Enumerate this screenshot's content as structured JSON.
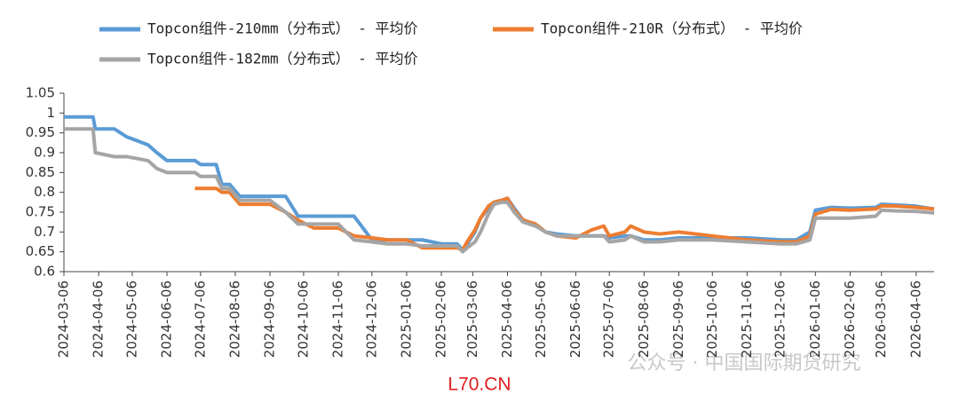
{
  "chart_data": {
    "type": "line",
    "x": [
      "2024-03-06",
      "2024-04-01",
      "2024-04-03",
      "2024-04-20",
      "2024-05-01",
      "2024-05-20",
      "2024-05-28",
      "2024-06-06",
      "2024-07-01",
      "2024-07-06",
      "2024-07-20",
      "2024-07-25",
      "2024-08-01",
      "2024-08-10",
      "2024-09-06",
      "2024-09-20",
      "2024-10-01",
      "2024-10-15",
      "2024-11-06",
      "2024-11-20",
      "2024-12-06",
      "2024-12-20",
      "2025-01-06",
      "2025-01-20",
      "2025-02-06",
      "2025-02-20",
      "2025-02-25",
      "2025-03-01",
      "2025-03-08",
      "2025-03-13",
      "2025-03-20",
      "2025-03-25",
      "2025-04-01",
      "2025-04-06",
      "2025-04-12",
      "2025-04-20",
      "2025-05-01",
      "2025-05-10",
      "2025-05-20",
      "2025-06-06",
      "2025-06-20",
      "2025-07-01",
      "2025-07-06",
      "2025-07-20",
      "2025-07-25",
      "2025-08-06",
      "2025-08-20",
      "2025-09-06",
      "2025-10-06",
      "2025-11-06",
      "2025-12-06",
      "2025-12-20",
      "2026-01-01",
      "2026-01-06",
      "2026-01-20",
      "2026-02-06",
      "2026-03-01",
      "2026-03-06",
      "2026-03-20",
      "2026-04-06",
      "2026-04-22"
    ],
    "series": [
      {
        "name": "Topcon组件-210mm（分布式） - 平均价",
        "color": "#5b9bd5",
        "values": [
          0.99,
          0.99,
          0.96,
          0.96,
          0.94,
          0.92,
          0.9,
          0.88,
          0.88,
          0.87,
          0.87,
          0.82,
          0.82,
          0.79,
          0.79,
          0.79,
          0.74,
          0.74,
          0.74,
          0.74,
          0.68,
          0.68,
          0.68,
          0.68,
          0.67,
          0.67,
          0.655,
          0.67,
          0.7,
          0.735,
          0.76,
          0.775,
          0.78,
          0.785,
          0.76,
          0.73,
          0.72,
          0.7,
          0.695,
          0.69,
          0.69,
          0.69,
          0.685,
          0.69,
          0.69,
          0.68,
          0.68,
          0.685,
          0.685,
          0.685,
          0.68,
          0.68,
          0.7,
          0.755,
          0.762,
          0.76,
          0.762,
          0.77,
          0.768,
          0.765,
          0.758
        ]
      },
      {
        "name": "Topcon组件-210R（分布式） - 平均价",
        "color": "#ed7d31",
        "values": [
          null,
          null,
          null,
          null,
          null,
          null,
          null,
          null,
          0.81,
          0.81,
          0.81,
          0.8,
          0.8,
          0.77,
          0.77,
          0.75,
          0.73,
          0.71,
          0.71,
          0.69,
          0.685,
          0.68,
          0.68,
          0.66,
          0.66,
          0.66,
          0.655,
          0.675,
          0.705,
          0.735,
          0.765,
          0.775,
          0.78,
          0.785,
          0.755,
          0.73,
          0.72,
          0.7,
          0.69,
          0.685,
          0.705,
          0.715,
          0.69,
          0.7,
          0.715,
          0.7,
          0.695,
          0.7,
          0.69,
          0.68,
          0.675,
          0.675,
          0.69,
          0.745,
          0.757,
          0.755,
          0.758,
          0.766,
          0.765,
          0.762,
          0.758
        ]
      },
      {
        "name": "Topcon组件-182mm（分布式） - 平均价",
        "color": "#a5a5a5",
        "values": [
          0.96,
          0.96,
          0.9,
          0.89,
          0.89,
          0.88,
          0.86,
          0.85,
          0.85,
          0.84,
          0.84,
          0.81,
          0.81,
          0.78,
          0.78,
          0.75,
          0.72,
          0.72,
          0.72,
          0.68,
          0.675,
          0.67,
          0.67,
          0.665,
          0.665,
          0.665,
          0.65,
          0.66,
          0.675,
          0.7,
          0.745,
          0.77,
          0.775,
          0.775,
          0.75,
          0.725,
          0.715,
          0.7,
          0.69,
          0.69,
          0.69,
          0.69,
          0.675,
          0.68,
          0.69,
          0.675,
          0.675,
          0.68,
          0.68,
          0.675,
          0.67,
          0.67,
          0.68,
          0.735,
          0.735,
          0.735,
          0.74,
          0.755,
          0.753,
          0.752,
          0.748
        ]
      }
    ],
    "xlim": [
      "2024-03-06",
      "2026-04-22"
    ],
    "xticks": [
      "2024-03-06",
      "2024-04-06",
      "2024-05-06",
      "2024-06-06",
      "2024-07-06",
      "2024-08-06",
      "2024-09-06",
      "2024-10-06",
      "2024-11-06",
      "2024-12-06",
      "2025-01-06",
      "2025-02-06",
      "2025-03-06",
      "2025-04-06",
      "2025-05-06",
      "2025-06-06",
      "2025-07-06",
      "2025-08-06",
      "2025-09-06",
      "2025-10-06",
      "2025-11-06",
      "2025-12-06",
      "2026-01-06",
      "2026-02-06",
      "2026-03-06",
      "2026-04-06"
    ],
    "ylim": [
      0.6,
      1.05
    ],
    "yticks": [
      0.6,
      0.65,
      0.7,
      0.75,
      0.8,
      0.85,
      0.9,
      0.95,
      1,
      1.05
    ],
    "watermark": "公众号 · 中国国际期货研究",
    "source_mark": "L70.CN"
  }
}
